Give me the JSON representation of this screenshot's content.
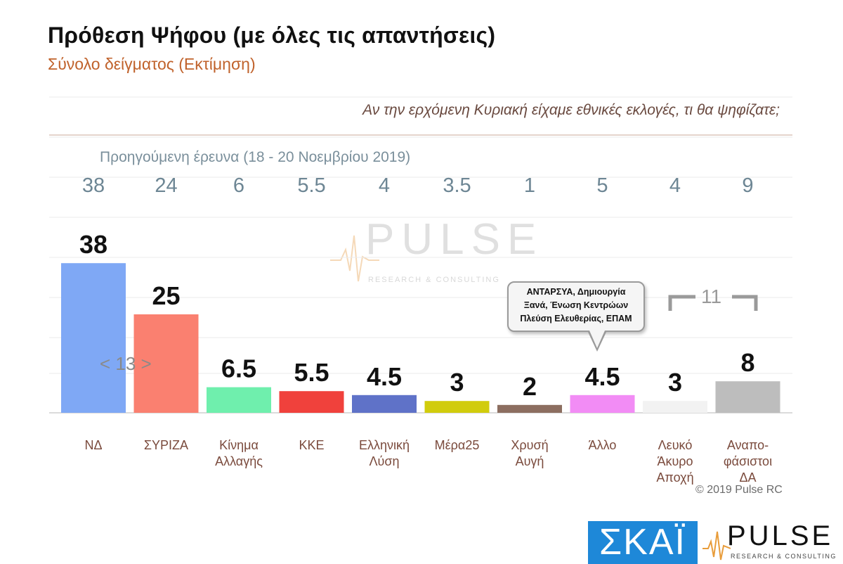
{
  "header": {
    "title": "Πρόθεση Ψήφου (με όλες τις απαντήσεις)",
    "subtitle": "Σύνολο δείγματος   (Εκτίμηση)",
    "question": "Αν την ερχόμενη Κυριακή είχαμε εθνικές εκλογές, τι θα ψηφίζατε;",
    "previous_label": "Προηγούμενη έρευνα  (18 - 20 Νοεμβρίου  2019)"
  },
  "chart_data": {
    "type": "bar",
    "title": "Πρόθεση Ψήφου (με όλες τις απαντήσεις)",
    "categories": [
      [
        "ΝΔ"
      ],
      [
        "ΣΥΡΙΖΑ"
      ],
      [
        "Κίνημα",
        "Αλλαγής"
      ],
      [
        "ΚΚΕ"
      ],
      [
        "Ελληνική",
        "Λύση"
      ],
      [
        "Μέρα25"
      ],
      [
        "Χρυσή",
        "Αυγή"
      ],
      [
        "Άλλο"
      ],
      [
        "Λευκό",
        "Άκυρο",
        "Αποχή"
      ],
      [
        "Αναπο-",
        "φάσιστοι",
        "ΔΑ"
      ]
    ],
    "series": [
      {
        "values": [
          38,
          25,
          6.5,
          5.5,
          4.5,
          3,
          2,
          4.5,
          3,
          8
        ],
        "labels": [
          "38",
          "25",
          "6.5",
          "5.5",
          "4.5",
          "3",
          "2",
          "4.5",
          "3",
          "8"
        ],
        "colors": [
          "#7fa8f5",
          "#fa8070",
          "#6fefad",
          "#f0413c",
          "#5f72c8",
          "#d1cc0c",
          "#8c6e60",
          "#f28cf5",
          "#f2f2f2",
          "#bdbdbd"
        ]
      }
    ],
    "previous": [
      "38",
      "24",
      "6",
      "5.5",
      "4",
      "3.5",
      "1",
      "5",
      "4",
      "9"
    ],
    "ylim": [
      0,
      45
    ],
    "grid": true
  },
  "annotations": {
    "bubble_lines": [
      "ΑΝΤΑΡΣΥΑ,  Δημιουργία",
      "Ξανά,  Ένωση Κεντρώων",
      "Πλεύση Ελευθερίας, ΕΠΑΜ"
    ],
    "range_nd_syriza": "< 13 >",
    "range_other": "11"
  },
  "footer": {
    "copyright": "© 2019 Pulse RC",
    "skai_logo": "ΣΚΑΪ",
    "pulse_logo": "PULSE",
    "pulse_sub": "RESEARCH & CONSULTING"
  },
  "watermark": {
    "text": "PULSE",
    "sub": "RESEARCH & CONSULTING"
  }
}
